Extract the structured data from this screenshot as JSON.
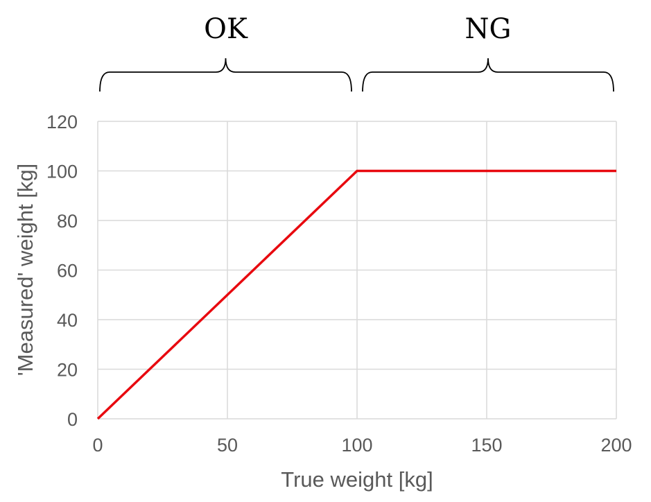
{
  "chart_data": {
    "type": "line",
    "xlabel": "True weight [kg]",
    "ylabel": "'Measured' weight [kg]",
    "xlim": [
      0,
      200
    ],
    "ylim": [
      0,
      120
    ],
    "xticks": [
      "0",
      "50",
      "100",
      "150",
      "200"
    ],
    "yticks": [
      "0",
      "20",
      "40",
      "60",
      "80",
      "100",
      "120"
    ],
    "grid": true,
    "legend": "none",
    "series": [
      {
        "x": [
          0,
          100,
          200
        ],
        "y": [
          0,
          100,
          100
        ],
        "color": "#e8090f"
      }
    ],
    "annotations": [
      {
        "text": "OK",
        "x_range": [
          0,
          100
        ]
      },
      {
        "text": "NG",
        "x_range": [
          100,
          200
        ]
      }
    ],
    "colors": {
      "series": "#e8090f",
      "grid": "#d9d9d9",
      "text": "#595959"
    }
  }
}
